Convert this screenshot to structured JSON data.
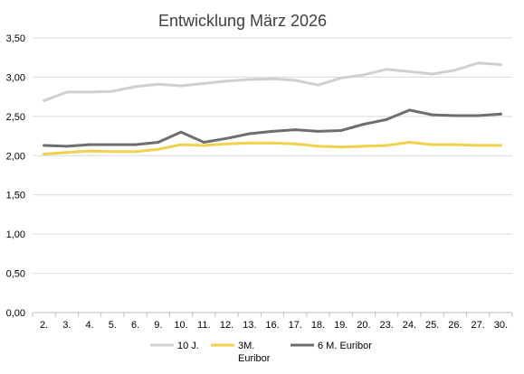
{
  "chart_data": {
    "type": "line",
    "title": "Entwicklung März 2026",
    "xlabel": "",
    "ylabel": "",
    "categories": [
      "2.",
      "3.",
      "4.",
      "5.",
      "6.",
      "9.",
      "10.",
      "11.",
      "12.",
      "13.",
      "16.",
      "17.",
      "18.",
      "19.",
      "20.",
      "23.",
      "24.",
      "25.",
      "26.",
      "27.",
      "30."
    ],
    "y_ticks": [
      "0,00",
      "0,50",
      "1,00",
      "1,50",
      "2,00",
      "2,50",
      "3,00",
      "3,50"
    ],
    "ylim": [
      0,
      3.5
    ],
    "grid": "horizontal",
    "legend_position": "bottom",
    "series": [
      {
        "name": "10 J.",
        "color": "#d0d0d0",
        "values": [
          2.7,
          2.81,
          2.81,
          2.82,
          2.88,
          2.91,
          2.89,
          2.92,
          2.95,
          2.97,
          2.98,
          2.96,
          2.9,
          2.99,
          3.03,
          3.1,
          3.07,
          3.04,
          3.09,
          3.18,
          3.16
        ]
      },
      {
        "name": "3M. Euribor",
        "legend_lines": [
          "3M.",
          "Euribor"
        ],
        "color": "#f2d14c",
        "values": [
          2.02,
          2.04,
          2.06,
          2.05,
          2.05,
          2.08,
          2.14,
          2.13,
          2.15,
          2.16,
          2.16,
          2.15,
          2.12,
          2.11,
          2.12,
          2.13,
          2.17,
          2.14,
          2.14,
          2.13,
          2.13
        ]
      },
      {
        "name": "6 M. Euribor",
        "color": "#6e6e6e",
        "values": [
          2.13,
          2.12,
          2.14,
          2.14,
          2.14,
          2.17,
          2.3,
          2.17,
          2.22,
          2.28,
          2.31,
          2.33,
          2.31,
          2.32,
          2.4,
          2.46,
          2.58,
          2.52,
          2.51,
          2.51,
          2.53
        ]
      }
    ]
  }
}
